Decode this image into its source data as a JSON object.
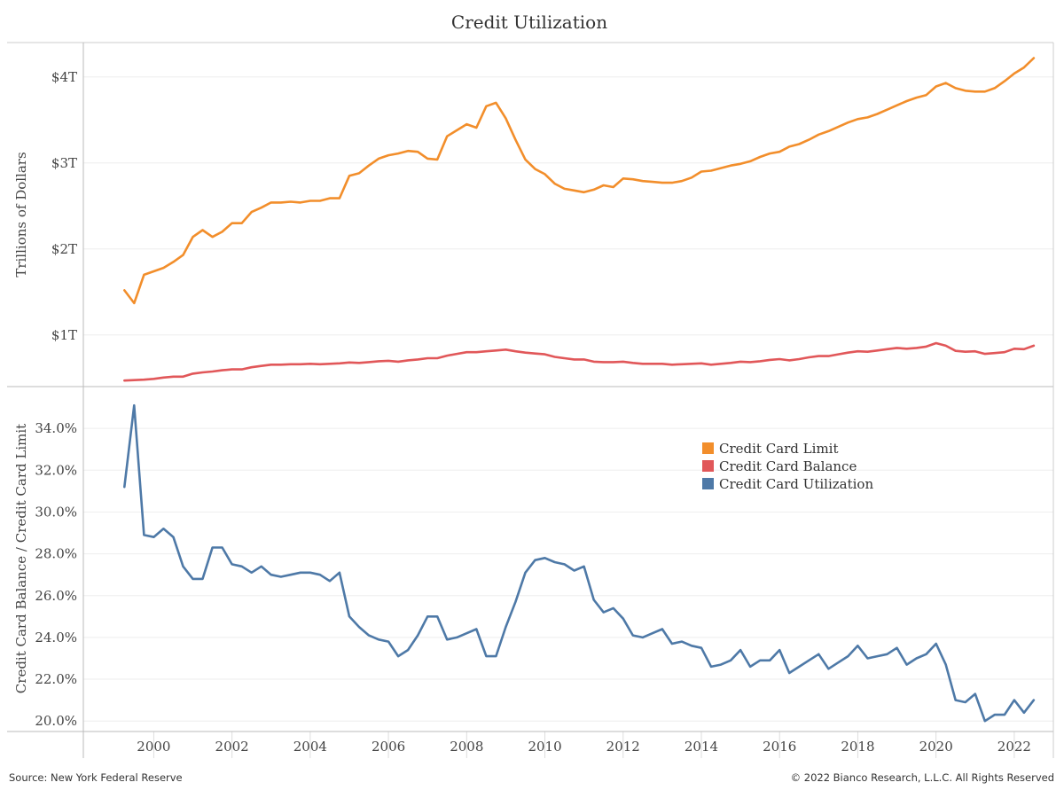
{
  "title": "Credit Utilization",
  "footer": {
    "source": "Source: New York Federal Reserve",
    "copyright": "© 2022 Bianco Research, L.L.C. All Rights Reserved"
  },
  "colors": {
    "limit": "#f28e2b",
    "balance": "#e15759",
    "utilization": "#4e79a7",
    "grid": "#eeeeee",
    "axis": "#bbbbbb"
  },
  "chart_data": [
    {
      "type": "line",
      "title": "Credit Utilization",
      "ylabel": "Trillions of Dollars",
      "ylim": [
        0.4,
        4.4
      ],
      "yticks": [
        1,
        2,
        3,
        4
      ],
      "ytick_labels": [
        "$1T",
        "$2T",
        "$3T",
        "$4T"
      ],
      "xlim": [
        1998.2,
        2023.0
      ],
      "grid": true,
      "series": [
        {
          "name": "Credit Card Limit",
          "x": [
            1999.25,
            1999.5,
            1999.75,
            2000.0,
            2000.25,
            2000.5,
            2000.75,
            2001.0,
            2001.25,
            2001.5,
            2001.75,
            2002.0,
            2002.25,
            2002.5,
            2002.75,
            2003.0,
            2003.25,
            2003.5,
            2003.75,
            2004.0,
            2004.25,
            2004.5,
            2004.75,
            2005.0,
            2005.25,
            2005.5,
            2005.75,
            2006.0,
            2006.25,
            2006.5,
            2006.75,
            2007.0,
            2007.25,
            2007.5,
            2007.75,
            2008.0,
            2008.25,
            2008.5,
            2008.75,
            2009.0,
            2009.25,
            2009.5,
            2009.75,
            2010.0,
            2010.25,
            2010.5,
            2010.75,
            2011.0,
            2011.25,
            2011.5,
            2011.75,
            2012.0,
            2012.25,
            2012.5,
            2012.75,
            2013.0,
            2013.25,
            2013.5,
            2013.75,
            2014.0,
            2014.25,
            2014.5,
            2014.75,
            2015.0,
            2015.25,
            2015.5,
            2015.75,
            2016.0,
            2016.25,
            2016.5,
            2016.75,
            2017.0,
            2017.25,
            2017.5,
            2017.75,
            2018.0,
            2018.25,
            2018.5,
            2018.75,
            2019.0,
            2019.25,
            2019.5,
            2019.75,
            2020.0,
            2020.25,
            2020.5,
            2020.75,
            2021.0,
            2021.25,
            2021.5,
            2021.75,
            2022.0,
            2022.25,
            2022.5
          ],
          "values": [
            1.52,
            1.37,
            1.7,
            1.74,
            1.78,
            1.85,
            1.93,
            2.14,
            2.22,
            2.14,
            2.2,
            2.3,
            2.3,
            2.43,
            2.48,
            2.54,
            2.54,
            2.55,
            2.54,
            2.56,
            2.56,
            2.59,
            2.59,
            2.85,
            2.88,
            2.97,
            3.05,
            3.09,
            3.11,
            3.14,
            3.13,
            3.05,
            3.04,
            3.31,
            3.38,
            3.45,
            3.41,
            3.66,
            3.7,
            3.52,
            3.27,
            3.04,
            2.93,
            2.87,
            2.76,
            2.7,
            2.68,
            2.66,
            2.69,
            2.74,
            2.72,
            2.82,
            2.81,
            2.79,
            2.78,
            2.77,
            2.77,
            2.79,
            2.83,
            2.9,
            2.91,
            2.94,
            2.97,
            2.99,
            3.02,
            3.07,
            3.11,
            3.13,
            3.19,
            3.22,
            3.27,
            3.33,
            3.37,
            3.42,
            3.47,
            3.51,
            3.53,
            3.57,
            3.62,
            3.67,
            3.72,
            3.76,
            3.79,
            3.89,
            3.93,
            3.87,
            3.84,
            3.83,
            3.83,
            3.87,
            3.95,
            4.04,
            4.11,
            4.22
          ]
        },
        {
          "name": "Credit Card Balance",
          "x": [
            1999.25,
            1999.5,
            1999.75,
            2000.0,
            2000.25,
            2000.5,
            2000.75,
            2001.0,
            2001.25,
            2001.5,
            2001.75,
            2002.0,
            2002.25,
            2002.5,
            2002.75,
            2003.0,
            2003.25,
            2003.5,
            2003.75,
            2004.0,
            2004.25,
            2004.5,
            2004.75,
            2005.0,
            2005.25,
            2005.5,
            2005.75,
            2006.0,
            2006.25,
            2006.5,
            2006.75,
            2007.0,
            2007.25,
            2007.5,
            2007.75,
            2008.0,
            2008.25,
            2008.5,
            2008.75,
            2009.0,
            2009.25,
            2009.5,
            2009.75,
            2010.0,
            2010.25,
            2010.5,
            2010.75,
            2011.0,
            2011.25,
            2011.5,
            2011.75,
            2012.0,
            2012.25,
            2012.5,
            2012.75,
            2013.0,
            2013.25,
            2013.5,
            2013.75,
            2014.0,
            2014.25,
            2014.5,
            2014.75,
            2015.0,
            2015.25,
            2015.5,
            2015.75,
            2016.0,
            2016.25,
            2016.5,
            2016.75,
            2017.0,
            2017.25,
            2017.5,
            2017.75,
            2018.0,
            2018.25,
            2018.5,
            2018.75,
            2019.0,
            2019.25,
            2019.5,
            2019.75,
            2020.0,
            2020.25,
            2020.5,
            2020.75,
            2021.0,
            2021.25,
            2021.5,
            2021.75,
            2022.0,
            2022.25,
            2022.5
          ],
          "values": [
            0.47,
            0.475,
            0.48,
            0.49,
            0.505,
            0.515,
            0.515,
            0.55,
            0.565,
            0.575,
            0.59,
            0.6,
            0.6,
            0.625,
            0.64,
            0.655,
            0.655,
            0.66,
            0.66,
            0.665,
            0.66,
            0.665,
            0.67,
            0.68,
            0.675,
            0.685,
            0.695,
            0.7,
            0.69,
            0.705,
            0.715,
            0.73,
            0.73,
            0.76,
            0.78,
            0.8,
            0.8,
            0.81,
            0.82,
            0.83,
            0.81,
            0.795,
            0.785,
            0.775,
            0.745,
            0.73,
            0.715,
            0.715,
            0.69,
            0.685,
            0.685,
            0.69,
            0.675,
            0.665,
            0.665,
            0.665,
            0.655,
            0.66,
            0.665,
            0.67,
            0.655,
            0.665,
            0.675,
            0.69,
            0.685,
            0.695,
            0.71,
            0.72,
            0.705,
            0.72,
            0.74,
            0.755,
            0.755,
            0.775,
            0.795,
            0.81,
            0.805,
            0.82,
            0.835,
            0.85,
            0.84,
            0.85,
            0.865,
            0.905,
            0.875,
            0.815,
            0.805,
            0.81,
            0.78,
            0.79,
            0.8,
            0.84,
            0.835,
            0.875
          ]
        }
      ]
    },
    {
      "type": "line",
      "ylabel": "Credit Card Balance / Credit Card Limit",
      "ylim": [
        19.5,
        36.0
      ],
      "yticks": [
        20,
        22,
        24,
        26,
        28,
        30,
        32,
        34
      ],
      "ytick_labels": [
        "20.0%",
        "22.0%",
        "24.0%",
        "26.0%",
        "28.0%",
        "30.0%",
        "32.0%",
        "34.0%"
      ],
      "xlim": [
        1998.2,
        2023.0
      ],
      "xticks": [
        2000,
        2002,
        2004,
        2006,
        2008,
        2010,
        2012,
        2014,
        2016,
        2018,
        2020,
        2022
      ],
      "xtick_labels": [
        "2000",
        "2002",
        "2004",
        "2006",
        "2008",
        "2010",
        "2012",
        "2014",
        "2016",
        "2018",
        "2020",
        "2022"
      ],
      "grid": true,
      "series": [
        {
          "name": "Credit Card Utilization",
          "x": [
            1999.25,
            1999.5,
            1999.75,
            2000.0,
            2000.25,
            2000.5,
            2000.75,
            2001.0,
            2001.25,
            2001.5,
            2001.75,
            2002.0,
            2002.25,
            2002.5,
            2002.75,
            2003.0,
            2003.25,
            2003.5,
            2003.75,
            2004.0,
            2004.25,
            2004.5,
            2004.75,
            2005.0,
            2005.25,
            2005.5,
            2005.75,
            2006.0,
            2006.25,
            2006.5,
            2006.75,
            2007.0,
            2007.25,
            2007.5,
            2007.75,
            2008.0,
            2008.25,
            2008.5,
            2008.75,
            2009.0,
            2009.25,
            2009.5,
            2009.75,
            2010.0,
            2010.25,
            2010.5,
            2010.75,
            2011.0,
            2011.25,
            2011.5,
            2011.75,
            2012.0,
            2012.25,
            2012.5,
            2012.75,
            2013.0,
            2013.25,
            2013.5,
            2013.75,
            2014.0,
            2014.25,
            2014.5,
            2014.75,
            2015.0,
            2015.25,
            2015.5,
            2015.75,
            2016.0,
            2016.25,
            2016.5,
            2016.75,
            2017.0,
            2017.25,
            2017.5,
            2017.75,
            2018.0,
            2018.25,
            2018.5,
            2018.75,
            2019.0,
            2019.25,
            2019.5,
            2019.75,
            2020.0,
            2020.25,
            2020.5,
            2020.75,
            2021.0,
            2021.25,
            2021.5,
            2021.75,
            2022.0,
            2022.25,
            2022.5
          ],
          "values": [
            31.2,
            35.1,
            28.9,
            28.8,
            29.2,
            28.8,
            27.4,
            26.8,
            26.8,
            28.3,
            28.3,
            27.5,
            27.4,
            27.1,
            27.4,
            27.0,
            26.9,
            27.0,
            27.1,
            27.1,
            27.0,
            26.7,
            27.1,
            25.0,
            24.5,
            24.1,
            23.9,
            23.8,
            23.1,
            23.4,
            24.1,
            25.0,
            25.0,
            23.9,
            24.0,
            24.2,
            24.4,
            23.1,
            23.1,
            24.5,
            25.7,
            27.1,
            27.7,
            27.8,
            27.6,
            27.5,
            27.2,
            27.4,
            25.8,
            25.2,
            25.4,
            24.9,
            24.1,
            24.0,
            24.2,
            24.4,
            23.7,
            23.8,
            23.6,
            23.5,
            22.6,
            22.7,
            22.9,
            23.4,
            22.6,
            22.9,
            22.9,
            23.4,
            22.3,
            22.6,
            22.9,
            23.2,
            22.5,
            22.8,
            23.1,
            23.6,
            23.0,
            23.1,
            23.2,
            23.5,
            22.7,
            23.0,
            23.2,
            23.7,
            22.7,
            21.0,
            20.9,
            21.3,
            20.0,
            20.3,
            20.3,
            21.0,
            20.4,
            21.0
          ]
        }
      ]
    }
  ],
  "legend": {
    "items": [
      {
        "label": "Credit Card Limit",
        "color": "#f28e2b"
      },
      {
        "label": "Credit Card Balance",
        "color": "#e15759"
      },
      {
        "label": "Credit Card Utilization",
        "color": "#4e79a7"
      }
    ]
  }
}
